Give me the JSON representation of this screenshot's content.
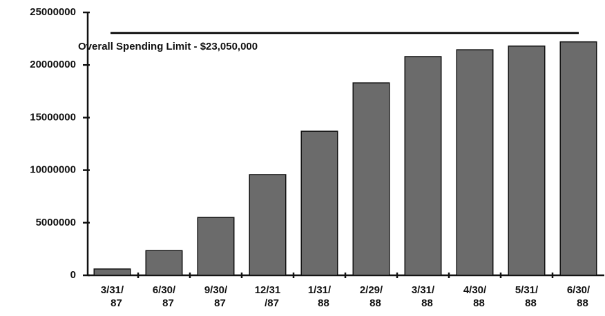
{
  "chart_data": {
    "type": "bar",
    "categories": [
      "3/31/\n87",
      "6/30/\n87",
      "9/30/\n87",
      "12/31\n/87",
      "1/31/\n88",
      "2/29/\n88",
      "3/31/\n88",
      "4/30/\n88",
      "5/31/\n88",
      "6/30/\n88"
    ],
    "values": [
      600000,
      2350000,
      5500000,
      9580000,
      13700000,
      18300000,
      20800000,
      21450000,
      21800000,
      22200000
    ],
    "color": "#6b6b6b",
    "ylim": [
      0,
      25000000
    ],
    "yticks": [
      0,
      5000000,
      10000000,
      15000000,
      20000000,
      25000000
    ],
    "grid": false,
    "reference_line": {
      "value": 23050000,
      "label": "Overall Spending Limit - $23,050,000"
    }
  }
}
